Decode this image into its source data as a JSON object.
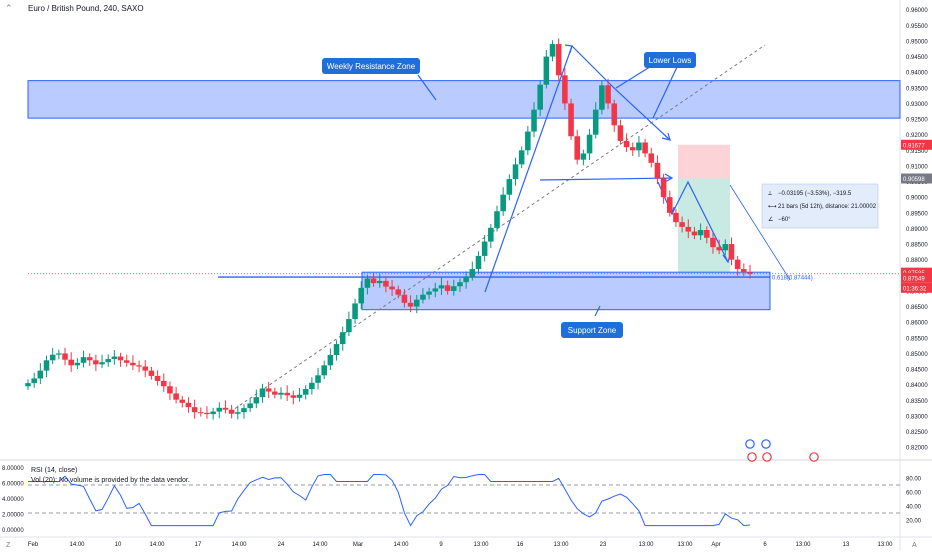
{
  "header": {
    "title": "Euro / British Pound, 240, SAXO"
  },
  "annotations": {
    "resistance_label": "Weekly Resistance Zone",
    "support_label": "Support Zone",
    "lower_lows_label": "Lower Lows",
    "fib_label": "0.618(0.87444)",
    "measure_line1": "−0.03195 (−3.53%), −319.5",
    "measure_line2": "21 bars (5d 12h), distance: 21.00002",
    "measure_line3": "−60°"
  },
  "price_axis": {
    "ticks": [
      "0.96000",
      "0.95500",
      "0.95000",
      "0.94500",
      "0.94000",
      "0.93500",
      "0.93000",
      "0.92500",
      "0.92000",
      "0.91500",
      "0.91000",
      "0.90500",
      "0.90000",
      "0.89500",
      "0.89000",
      "0.88500",
      "0.88000",
      "0.87500",
      "0.87000",
      "0.86500",
      "0.86000",
      "0.85500",
      "0.85000",
      "0.84500",
      "0.84000",
      "0.83500",
      "0.83000",
      "0.82500",
      "0.82000"
    ],
    "badges": [
      {
        "text": "0.91677",
        "color": "#f23645"
      },
      {
        "text": "0.90598",
        "color": "#787b86"
      },
      {
        "text": "0.87585",
        "color": "#f23645"
      },
      {
        "text": "0.87549",
        "color": "#f23645"
      },
      {
        "text": "01:36:32",
        "color": "#f23645"
      }
    ]
  },
  "rsi_panel": {
    "title": "RSI (14, close)",
    "vol_note": "Vol (20): No volume is provided by the data vendor.",
    "right_ticks": [
      "80.00",
      "60.00",
      "40.00",
      "20.00"
    ],
    "left_ticks": [
      "8.00000",
      "6.00000",
      "4.00000",
      "2.00000",
      "0.00000"
    ]
  },
  "time_axis": {
    "ticks": [
      "Feb",
      "14:00",
      "10",
      "14:00",
      "17",
      "14:00",
      "24",
      "14:00",
      "Mar",
      "14:00",
      "9",
      "13:00",
      "16",
      "13:00",
      "23",
      "13:00",
      "26",
      "13:00",
      "Apr",
      "6",
      "13:00",
      "13",
      "13:00"
    ]
  },
  "chart_data": {
    "type": "candlestick",
    "title": "Euro / British Pound, 240, SAXO",
    "y_range": [
      0.8175,
      0.9615
    ],
    "resistance_zone": [
      0.9253,
      0.9373
    ],
    "support_zone": [
      0.864,
      0.876
    ],
    "fib_level": 0.87444,
    "last_price": 0.87549,
    "short_position": {
      "entry": 0.90598,
      "stop": 0.91677,
      "target": 0.87585
    },
    "measure": {
      "change": -0.03195,
      "change_pct": -3.53,
      "bars": 21
    },
    "rsi": {
      "overbought": 70,
      "oversold": 30,
      "range": [
        0,
        100
      ]
    },
    "close_series": [
      0.8405,
      0.842,
      0.8445,
      0.8478,
      0.8496,
      0.85,
      0.848,
      0.8462,
      0.847,
      0.8488,
      0.8478,
      0.8465,
      0.8472,
      0.8482,
      0.849,
      0.8478,
      0.847,
      0.8462,
      0.8458,
      0.8445,
      0.8428,
      0.8412,
      0.8395,
      0.8372,
      0.8352,
      0.8342,
      0.8328,
      0.8312,
      0.831,
      0.8306,
      0.8314,
      0.8326,
      0.832,
      0.8307,
      0.8312,
      0.8325,
      0.834,
      0.836,
      0.8388,
      0.8378,
      0.8368,
      0.8374,
      0.8366,
      0.8358,
      0.8368,
      0.8386,
      0.8406,
      0.843,
      0.8462,
      0.8495,
      0.853,
      0.8568,
      0.861,
      0.866,
      0.871,
      0.874,
      0.8725,
      0.8732,
      0.8714,
      0.8705,
      0.8688,
      0.8662,
      0.865,
      0.8672,
      0.8688,
      0.8698,
      0.8708,
      0.8718,
      0.87,
      0.8715,
      0.8728,
      0.8745,
      0.877,
      0.8812,
      0.8858,
      0.8902,
      0.8955,
      0.9008,
      0.9058,
      0.9105,
      0.915,
      0.921,
      0.928,
      0.936,
      0.945,
      0.949,
      0.939,
      0.93,
      0.9195,
      0.912,
      0.914,
      0.92,
      0.928,
      0.9358,
      0.93,
      0.923,
      0.918,
      0.916,
      0.915,
      0.9175,
      0.914,
      0.911,
      0.906,
      0.9,
      0.895,
      0.892,
      0.8905,
      0.889,
      0.8878,
      0.8895,
      0.887,
      0.884,
      0.883,
      0.885,
      0.88,
      0.877,
      0.876,
      0.8755
    ]
  }
}
